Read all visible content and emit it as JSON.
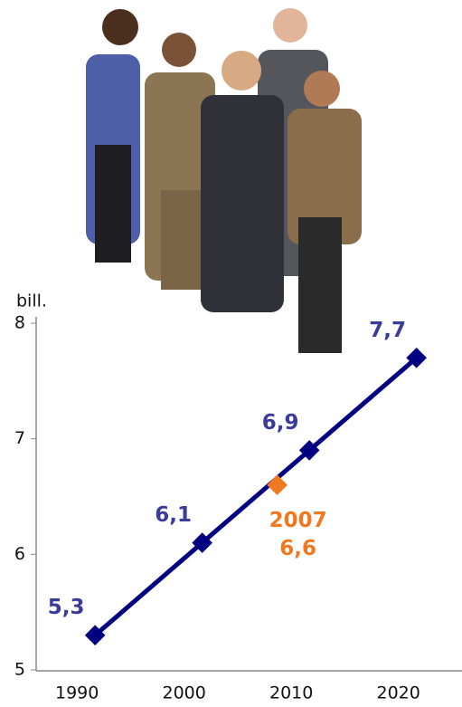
{
  "chart_data": {
    "type": "line",
    "y_label": "bill.",
    "x": [
      1990,
      2000,
      2010,
      2020
    ],
    "series": [
      {
        "color": "#000080",
        "label_color": "#3b3b9c",
        "values": [
          5.3,
          6.1,
          6.9,
          7.7
        ],
        "value_labels": [
          "5,3",
          "6,1",
          "6,9",
          "7,7"
        ]
      }
    ],
    "highlight": {
      "x": 2007,
      "value": 6.6,
      "value_label": "6,6",
      "color": "#f07820"
    },
    "xlim": [
      1984.5,
      2024.5
    ],
    "xticks": [
      1990,
      2000,
      2010,
      2020
    ],
    "ylim": [
      5,
      8
    ],
    "yticks": [
      5,
      6,
      7,
      8
    ]
  }
}
